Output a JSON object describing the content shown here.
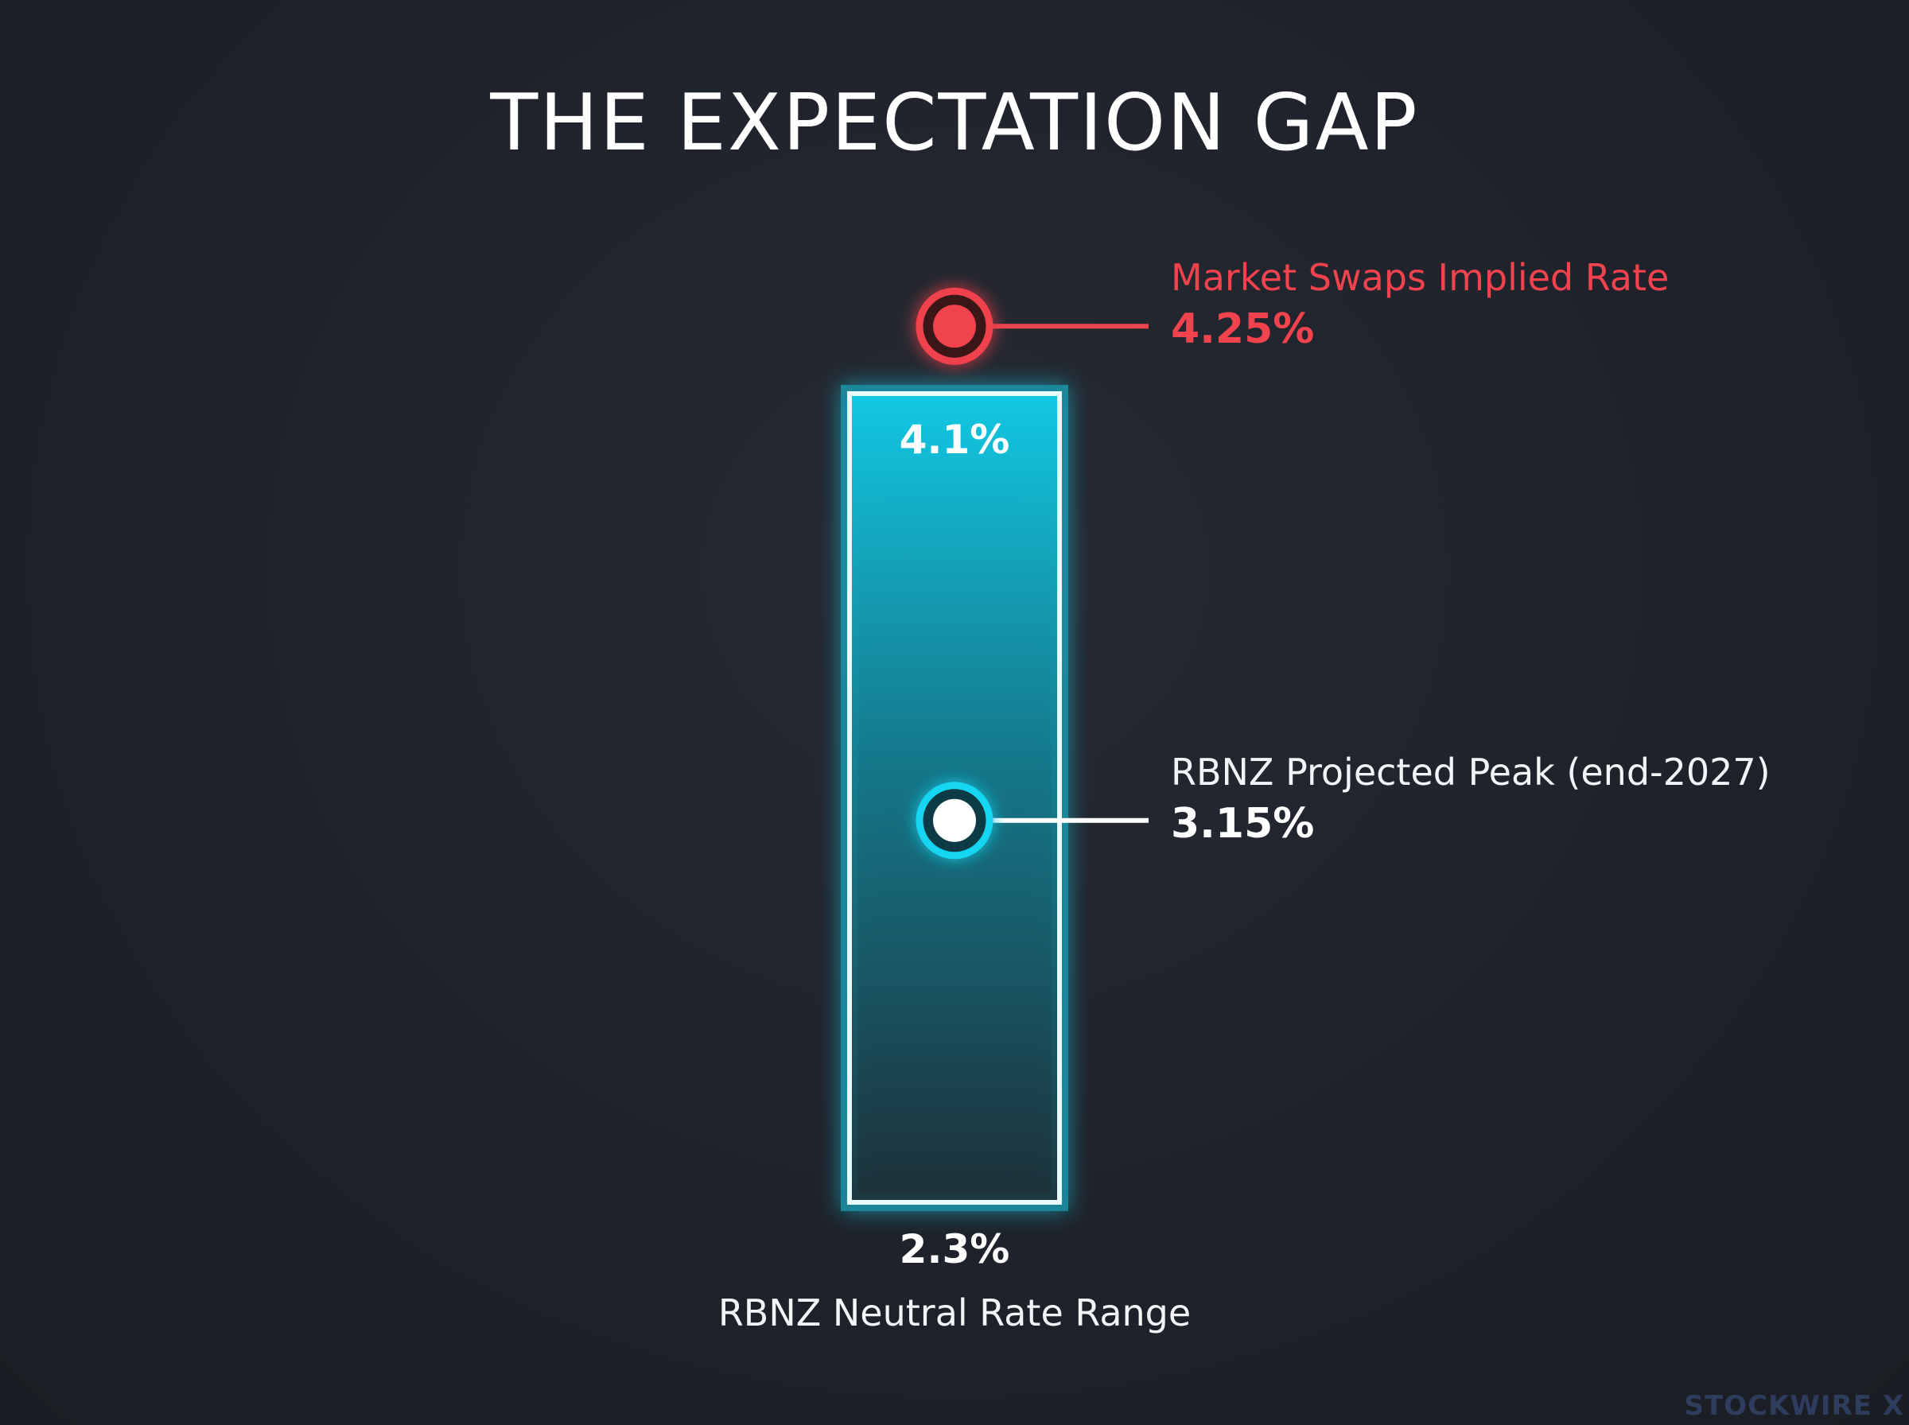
{
  "title": "THE EXPECTATION GAP",
  "watermark": "STOCKWIRE X",
  "colors": {
    "background": "#1f222a",
    "market": "#f0434d",
    "neutral_range": "#16d6f2",
    "text": "#ffffff"
  },
  "chart_data": {
    "type": "range",
    "title": "THE EXPECTATION GAP",
    "range": {
      "name": "RBNZ Neutral Rate Range",
      "low": 2.3,
      "high": 4.1,
      "low_label": "2.3%",
      "high_label": "4.1%"
    },
    "markers": [
      {
        "name": "Market Swaps Implied Rate",
        "value": 4.25,
        "label": "4.25%",
        "color": "#f0434d"
      },
      {
        "name": "RBNZ Projected Peak (end-2027)",
        "value": 3.15,
        "label": "3.15%",
        "color": "#16d6f2"
      }
    ],
    "grid": false
  }
}
